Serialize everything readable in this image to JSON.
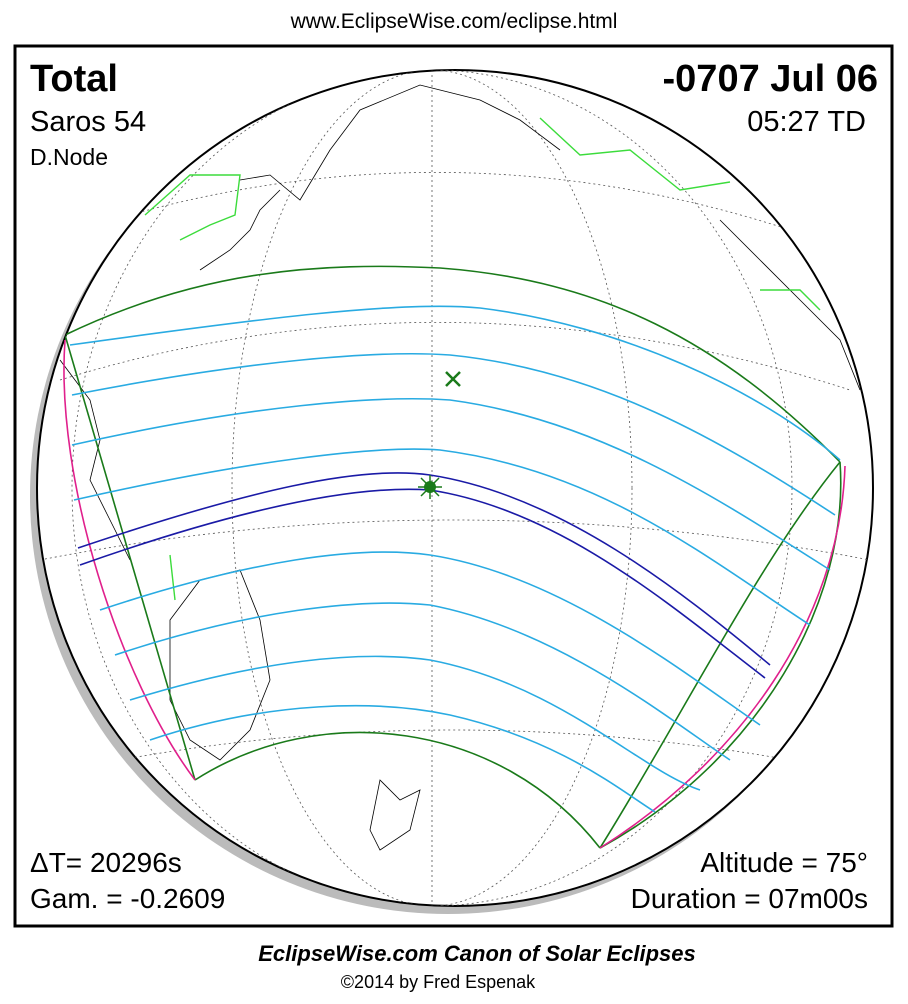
{
  "header": {
    "url": "www.EclipseWise.com/eclipse.html"
  },
  "eclipse": {
    "type": "Total",
    "date": "-0707 Jul 06",
    "saros": "Saros  54",
    "node": "D.Node",
    "time": "05:27 TD",
    "delta_t": "ΔT=  20296s",
    "gamma": "Gam. = -0.2609",
    "altitude": "Altitude = 75°",
    "duration": "Duration = 07m00s"
  },
  "footer": {
    "title": "EclipseWise.com Canon of Solar Eclipses",
    "copyright": "©2014 by Fred Espenak"
  }
}
